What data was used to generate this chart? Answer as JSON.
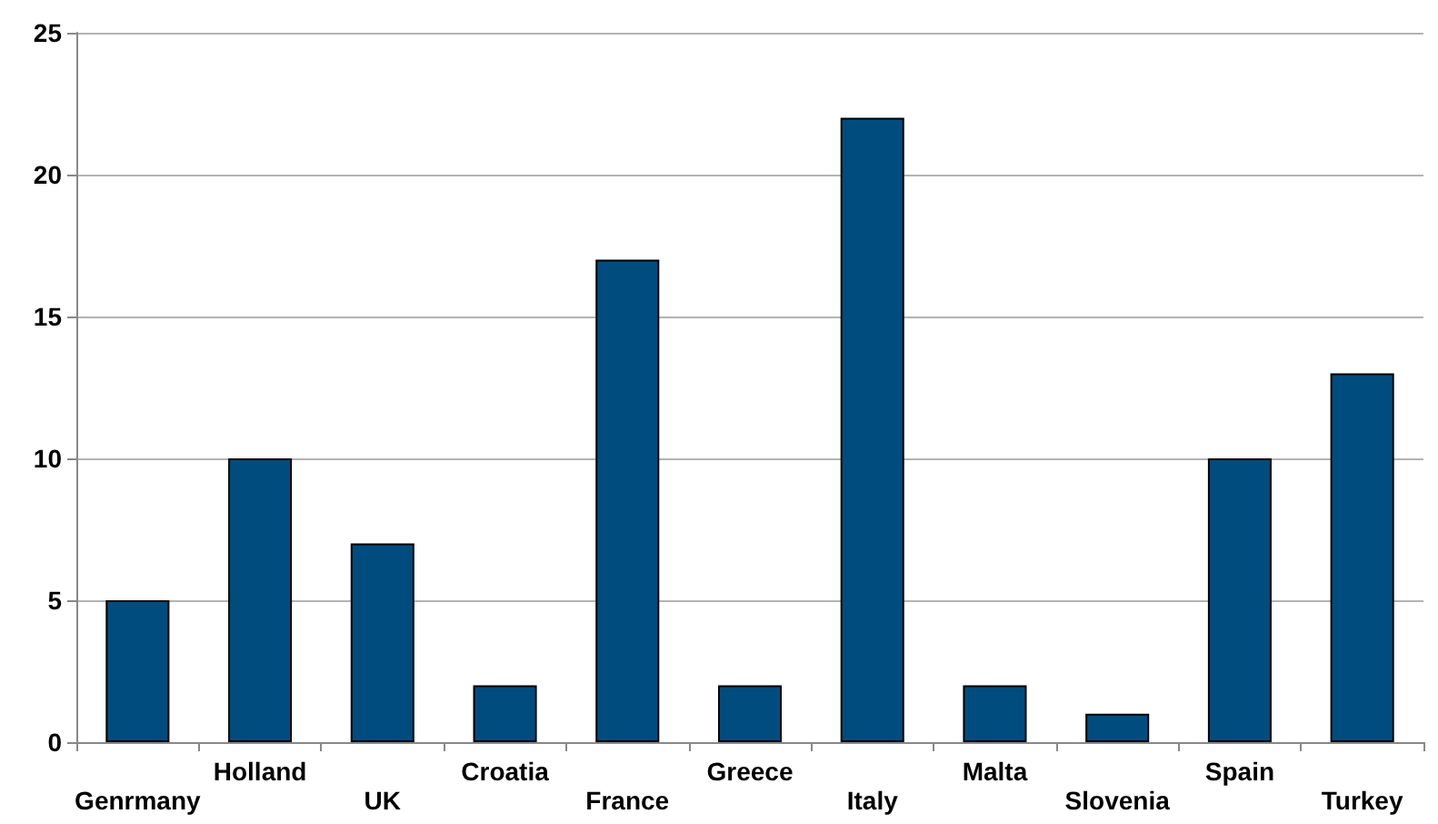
{
  "chart_data": {
    "type": "bar",
    "categories": [
      "Genrmany",
      "Holland",
      "UK",
      "Croatia",
      "France",
      "Greece",
      "Italy",
      "Malta",
      "Slovenia",
      "Spain",
      "Turkey"
    ],
    "values": [
      5,
      10,
      7,
      2,
      17,
      2,
      22,
      2,
      1,
      10,
      13
    ],
    "color": "#004c7f",
    "ylim": [
      0,
      25
    ],
    "yticks": [
      0,
      5,
      10,
      15,
      20,
      25
    ],
    "grid": "y"
  }
}
